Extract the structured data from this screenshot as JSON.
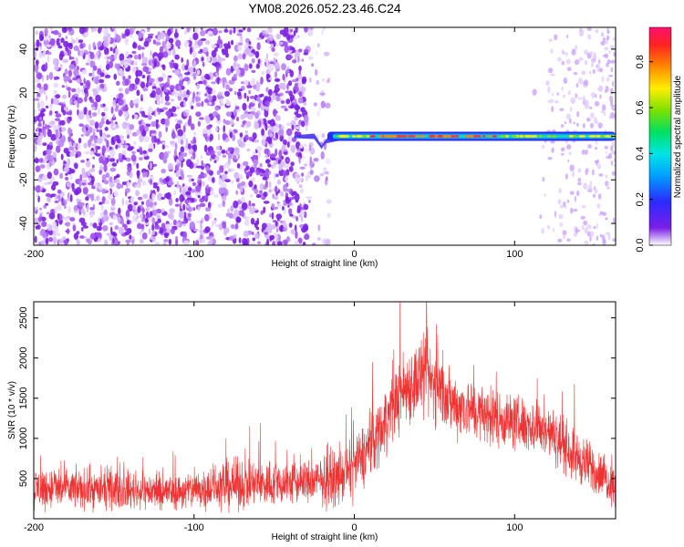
{
  "figure": {
    "title": "YM08.2026.052.23.46.C24"
  },
  "chart_data": [
    {
      "type": "heatmap",
      "title": "YM08.2026.052.23.46.C24",
      "xlabel": "Height of straight line (km)",
      "ylabel": "Frequency (Hz)",
      "xlim": [
        -200,
        163
      ],
      "ylim": [
        -50,
        50
      ],
      "xticks": [
        "-200",
        "-100",
        "0",
        "100"
      ],
      "yticks": [
        "-40",
        "-20",
        "0",
        "20",
        "40"
      ],
      "colorbar": {
        "label": "Normalized spectral amplitude",
        "range": [
          0.0,
          0.95
        ],
        "ticks": [
          "0.0",
          "0.2",
          "0.4",
          "0.6",
          "0.8"
        ]
      },
      "features": {
        "noise_region_km": [
          -200,
          -30
        ],
        "signal_band_frequency_hz": 0,
        "signal_start_km": -25,
        "peak_amplitude_range_km": [
          10,
          90
        ]
      }
    },
    {
      "type": "line",
      "xlabel": "Height of straight line (km)",
      "ylabel": "SNR (10 * v/v)",
      "xlim": [
        -200,
        163
      ],
      "ylim": [
        0,
        2700
      ],
      "xticks": [
        "-200",
        "-100",
        "0",
        "100"
      ],
      "yticks": [
        "500",
        "1000",
        "1500",
        "2000",
        "2500"
      ],
      "series": [
        {
          "name": "SNR",
          "color": "#ee3333",
          "envelope_x": [
            -200,
            -150,
            -110,
            -80,
            -30,
            -10,
            0,
            10,
            20,
            30,
            40,
            50,
            60,
            80,
            100,
            120,
            140,
            163
          ],
          "envelope_mean": [
            380,
            360,
            330,
            420,
            450,
            500,
            650,
            900,
            1250,
            1600,
            1750,
            1700,
            1450,
            1300,
            1200,
            1100,
            750,
            400
          ],
          "envelope_spread": [
            330,
            280,
            270,
            380,
            340,
            400,
            430,
            520,
            500,
            560,
            620,
            580,
            500,
            430,
            420,
            400,
            400,
            300
          ]
        }
      ]
    }
  ]
}
